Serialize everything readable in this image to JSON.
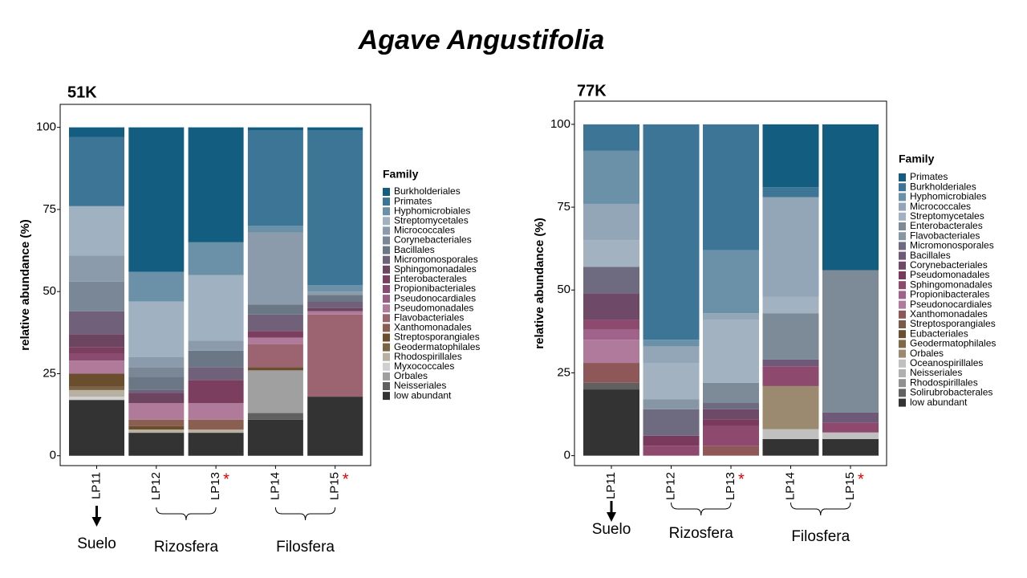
{
  "title": "Agave Angustifolia",
  "chart_data": [
    {
      "type": "stacked-bar",
      "title": "51K",
      "y_label": "relative abundance (%)",
      "legend_title": "Family",
      "legend": "right",
      "categories": [
        "LP11",
        "LP12",
        "LP13",
        "LP14",
        "LP15"
      ],
      "ylim": [
        -3,
        107
      ],
      "yticks": [
        0,
        25,
        50,
        75,
        100
      ],
      "annotations": [
        {
          "category": "LP13",
          "text": "*"
        },
        {
          "category": "LP15",
          "text": "*"
        }
      ],
      "groups": [
        {
          "label": "Suelo",
          "start": "LP11",
          "end": "LP11"
        },
        {
          "label": "Rizosfera",
          "start": "LP12",
          "end": "LP13"
        },
        {
          "label": "Filosfera",
          "start": "LP14",
          "end": "LP15"
        }
      ],
      "series": [
        {
          "name": "Burkholderiales",
          "color": "#135e80",
          "values": [
            3,
            44,
            35,
            1,
            1
          ]
        },
        {
          "name": "Primates",
          "color": "#3d7597",
          "values": [
            21,
            0,
            0,
            29,
            47
          ]
        },
        {
          "name": "Hyphomicrobiales",
          "color": "#6a91a8",
          "values": [
            0,
            9,
            10,
            2,
            2
          ]
        },
        {
          "name": "Streptomycetales",
          "color": "#a0b1c1",
          "values": [
            15,
            17,
            20,
            0,
            0
          ]
        },
        {
          "name": "Micrococcales",
          "color": "#8c9bab",
          "values": [
            8,
            3,
            3,
            22,
            1
          ]
        },
        {
          "name": "Corynebacteriales",
          "color": "#7a8796",
          "values": [
            9,
            3,
            0,
            0,
            0
          ]
        },
        {
          "name": "Bacillales",
          "color": "#6b7785",
          "values": [
            0,
            4,
            5,
            3,
            2
          ]
        },
        {
          "name": "Micromonosporales",
          "color": "#70607a",
          "values": [
            7,
            1,
            4,
            5,
            2
          ]
        },
        {
          "name": "Sphingomonadales",
          "color": "#6e4560",
          "values": [
            4,
            3,
            0,
            0,
            1
          ]
        },
        {
          "name": "Enterobacterales",
          "color": "#7c3e5e",
          "values": [
            2,
            0,
            7,
            2,
            0
          ]
        },
        {
          "name": "Propionibacteriales",
          "color": "#8b4a6f",
          "values": [
            2,
            0,
            0,
            0,
            0
          ]
        },
        {
          "name": "Pseudonocardiales",
          "color": "#9a5e84",
          "values": [
            0,
            0,
            0,
            0,
            0
          ]
        },
        {
          "name": "Pseudomonadales",
          "color": "#b07a9a",
          "values": [
            4,
            5,
            5,
            2,
            1
          ]
        },
        {
          "name": "Flavobacteriales",
          "color": "#9c6470",
          "values": [
            0,
            0,
            0,
            7,
            25
          ]
        },
        {
          "name": "Xanthomonadales",
          "color": "#8a5e50",
          "values": [
            0,
            2,
            3,
            0,
            0
          ]
        },
        {
          "name": "Streptosporangiales",
          "color": "#6a4e2e",
          "values": [
            4,
            1,
            0,
            1,
            0
          ]
        },
        {
          "name": "Geodermatophilales",
          "color": "#7a6445",
          "values": [
            1,
            0,
            0,
            0,
            0
          ]
        },
        {
          "name": "Rhodospirillales",
          "color": "#b8b0a0",
          "values": [
            2,
            1,
            1,
            0,
            0
          ]
        },
        {
          "name": "Myxococcales",
          "color": "#d0d0d0",
          "values": [
            1,
            0,
            0,
            0,
            0
          ]
        },
        {
          "name": "Orbales",
          "color": "#a0a0a0",
          "values": [
            0,
            0,
            0,
            13,
            0
          ]
        },
        {
          "name": "Neisseriales",
          "color": "#606060",
          "values": [
            0,
            0,
            0,
            2,
            0
          ]
        },
        {
          "name": "low abundant",
          "color": "#333333",
          "values": [
            17,
            7,
            7,
            11,
            18
          ]
        }
      ]
    },
    {
      "type": "stacked-bar",
      "title": "77K",
      "y_label": "relative abundance (%)",
      "legend_title": "Family",
      "legend": "right",
      "categories": [
        "LP11",
        "LP12",
        "LP13",
        "LP14",
        "LP15"
      ],
      "ylim": [
        -3,
        107
      ],
      "yticks": [
        0,
        25,
        50,
        75,
        100
      ],
      "annotations": [
        {
          "category": "LP13",
          "text": "*"
        },
        {
          "category": "LP15",
          "text": "*"
        }
      ],
      "groups": [
        {
          "label": "Suelo",
          "start": "LP11",
          "end": "LP11"
        },
        {
          "label": "Rizosfera",
          "start": "LP12",
          "end": "LP13"
        },
        {
          "label": "Filosfera",
          "start": "LP14",
          "end": "LP15"
        }
      ],
      "series": [
        {
          "name": "Primates",
          "color": "#135e80",
          "values": [
            0,
            0,
            0,
            19,
            44
          ]
        },
        {
          "name": "Burkholderiales",
          "color": "#3d7597",
          "values": [
            8,
            65,
            38,
            3,
            0
          ]
        },
        {
          "name": "Hyphomicrobiales",
          "color": "#6a91a8",
          "values": [
            16,
            2,
            19,
            0,
            0
          ]
        },
        {
          "name": "Micrococcales",
          "color": "#93a6b8",
          "values": [
            11,
            5,
            2,
            30,
            0
          ]
        },
        {
          "name": "Streptomycetales",
          "color": "#a2b2c0",
          "values": [
            8,
            11,
            19,
            5,
            0
          ]
        },
        {
          "name": "Enterobacterales",
          "color": "#7d8b98",
          "values": [
            0,
            0,
            6,
            14,
            43
          ]
        },
        {
          "name": "Flavobacteriales",
          "color": "#8696a4",
          "values": [
            0,
            3,
            0,
            0,
            0
          ]
        },
        {
          "name": "Micromonosporales",
          "color": "#6e6a80",
          "values": [
            8,
            8,
            2,
            0,
            0
          ]
        },
        {
          "name": "Bacillales",
          "color": "#6e5a78",
          "values": [
            0,
            0,
            0,
            2,
            3
          ]
        },
        {
          "name": "Corynebacteriales",
          "color": "#6e4a68",
          "values": [
            8,
            0,
            3,
            0,
            0
          ]
        },
        {
          "name": "Pseudomonadales",
          "color": "#7a3a5e",
          "values": [
            0,
            3,
            2,
            0,
            0
          ]
        },
        {
          "name": "Sphingomonadales",
          "color": "#8d4a6e",
          "values": [
            3,
            3,
            6,
            6,
            3
          ]
        },
        {
          "name": "Propionibacterales",
          "color": "#a0628a",
          "values": [
            3,
            0,
            0,
            0,
            0
          ]
        },
        {
          "name": "Pseudonocardiales",
          "color": "#b07a9c",
          "values": [
            7,
            0,
            0,
            0,
            0
          ]
        },
        {
          "name": "Xanthomonadales",
          "color": "#8e5858",
          "values": [
            6,
            0,
            3,
            0,
            0
          ]
        },
        {
          "name": "Streptosporangiales",
          "color": "#7a5a48",
          "values": [
            0,
            0,
            0,
            0,
            0
          ]
        },
        {
          "name": "Eubacteriales",
          "color": "#6a4e30",
          "values": [
            0,
            0,
            0,
            0,
            0
          ]
        },
        {
          "name": "Geodermatophilales",
          "color": "#806848",
          "values": [
            0,
            0,
            0,
            0,
            0
          ]
        },
        {
          "name": "Orbales",
          "color": "#9c8a70",
          "values": [
            0,
            0,
            0,
            13,
            0
          ]
        },
        {
          "name": "Oceanospirillales",
          "color": "#c0c0c0",
          "values": [
            0,
            0,
            0,
            3,
            2
          ]
        },
        {
          "name": "Neisseriales",
          "color": "#b0b0b0",
          "values": [
            0,
            0,
            0,
            0,
            0
          ]
        },
        {
          "name": "Rhodospirillales",
          "color": "#909090",
          "values": [
            0,
            0,
            0,
            0,
            0
          ]
        },
        {
          "name": "Solirubrobacterales",
          "color": "#606060",
          "values": [
            2,
            0,
            0,
            0,
            0
          ]
        },
        {
          "name": "low abundant",
          "color": "#333333",
          "values": [
            20,
            0,
            0,
            5,
            5
          ]
        }
      ]
    }
  ]
}
